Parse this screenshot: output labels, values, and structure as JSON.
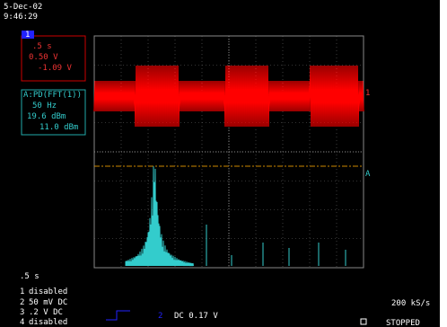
{
  "header": {
    "date": "5-Dec-02",
    "time": "9:46:29"
  },
  "channel_box": {
    "channel": "1",
    "timebase": ".5 s",
    "scale": "0.50 V",
    "offset": "-1.09 V"
  },
  "math_box": {
    "label": "A:PD(FFT(1))",
    "frequency": "50 Hz",
    "level": "19.6 dBm",
    "reference": "11.0 dBm"
  },
  "markers": {
    "channel": "1",
    "math": "A"
  },
  "footer": {
    "timebase": ".5 s",
    "channels": [
      {
        "number": "1",
        "text": "disabled"
      },
      {
        "number": "2",
        "text": "50 mV  DC"
      },
      {
        "number": "3",
        "text": ".2  V  DC"
      },
      {
        "number": "4",
        "text": "disabled"
      }
    ],
    "trigger": {
      "channel": "2",
      "text": "DC 0.17 V"
    },
    "sample_rate": "200 kS/s",
    "status": "STOPPED"
  }
}
